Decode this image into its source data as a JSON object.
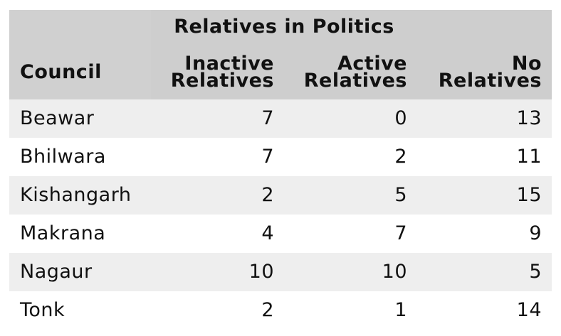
{
  "chart_data": {
    "type": "table",
    "group_header": "Relatives in Politics",
    "columns": [
      {
        "key": "council",
        "label": "Council"
      },
      {
        "key": "inactive",
        "label_line1": "Inactive",
        "label_line2": "Relatives"
      },
      {
        "key": "active",
        "label_line1": "Active",
        "label_line2": "Relatives"
      },
      {
        "key": "none",
        "label_line1": "No",
        "label_line2": "Relatives"
      }
    ],
    "rows": [
      {
        "council": "Beawar",
        "inactive": "7",
        "active": "0",
        "none": "13"
      },
      {
        "council": "Bhilwara",
        "inactive": "7",
        "active": "2",
        "none": "11"
      },
      {
        "council": "Kishangarh",
        "inactive": "2",
        "active": "5",
        "none": "15"
      },
      {
        "council": "Makrana",
        "inactive": "4",
        "active": "7",
        "none": "9"
      },
      {
        "council": "Nagaur",
        "inactive": "10",
        "active": "10",
        "none": "5"
      },
      {
        "council": "Tonk",
        "inactive": "2",
        "active": "1",
        "none": "14"
      }
    ],
    "colors": {
      "header_bg": "#d0d0d0",
      "striped_row_bg": "#eeeeee",
      "plain_row_bg": "#ffffff",
      "text": "#111111"
    }
  }
}
